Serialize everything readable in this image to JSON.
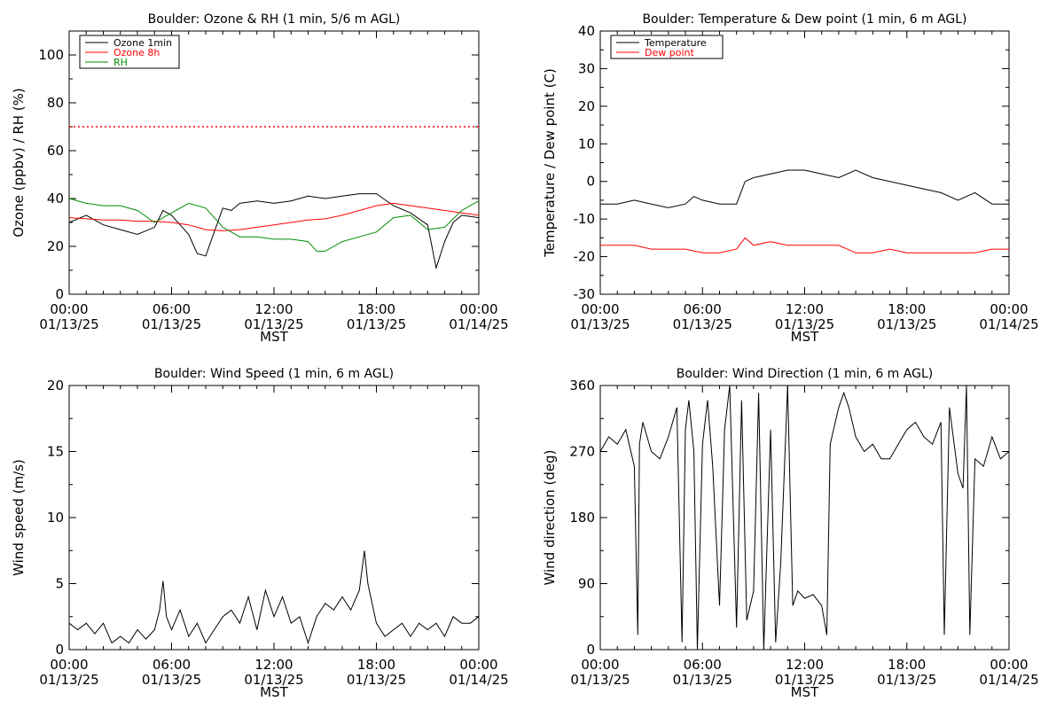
{
  "chart_data": [
    {
      "type": "line",
      "title": "Boulder: Ozone & RH (1 min, 5/6 m AGL)",
      "xlabel": "MST",
      "ylabel": "Ozone (ppbv) / RH (%)",
      "xlim": [
        0,
        24
      ],
      "ylim": [
        0,
        110
      ],
      "yticks": [
        0,
        20,
        40,
        60,
        80,
        100
      ],
      "xticks": [
        {
          "time": "00:00",
          "date": "01/13/25"
        },
        {
          "time": "06:00",
          "date": "01/13/25"
        },
        {
          "time": "12:00",
          "date": "01/13/25"
        },
        {
          "time": "18:00",
          "date": "01/13/25"
        },
        {
          "time": "00:00",
          "date": "01/14/25"
        }
      ],
      "reference_line": {
        "y": 70,
        "style": "dotted",
        "color": "#ff0000"
      },
      "legend_position": "top-left",
      "series": [
        {
          "name": "Ozone 1min",
          "color": "#000000",
          "x": [
            0,
            1,
            2,
            3,
            4,
            5,
            5.5,
            6,
            7,
            7.5,
            8,
            8.5,
            9,
            9.5,
            10,
            11,
            12,
            13,
            14,
            15,
            16,
            17,
            18,
            19,
            20,
            21,
            21.5,
            22,
            22.5,
            23,
            24
          ],
          "values": [
            30,
            33,
            29,
            27,
            25,
            28,
            35,
            33,
            25,
            17,
            16,
            26,
            36,
            35,
            38,
            39,
            38,
            39,
            41,
            40,
            41,
            42,
            42,
            37,
            34,
            29,
            11,
            22,
            30,
            33,
            32
          ]
        },
        {
          "name": "Ozone 8h",
          "color": "#ff0000",
          "x": [
            0,
            1,
            2,
            3,
            4,
            5,
            6,
            7,
            8,
            9,
            10,
            11,
            12,
            13,
            14,
            15,
            16,
            17,
            18,
            19,
            20,
            21,
            22,
            23,
            24
          ],
          "values": [
            32,
            31.5,
            31,
            31,
            30.5,
            30.5,
            30,
            29,
            27,
            26.5,
            27,
            28,
            29,
            30,
            31,
            31.5,
            33,
            35,
            37,
            38,
            37,
            36,
            35,
            34,
            33
          ]
        },
        {
          "name": "RH",
          "color": "#008c00",
          "x": [
            0,
            1,
            2,
            3,
            4,
            5,
            6,
            7,
            8,
            8.5,
            9,
            10,
            11,
            12,
            13,
            14,
            14.5,
            15,
            16,
            17,
            18,
            18.5,
            19,
            20,
            21,
            22,
            23,
            24
          ],
          "values": [
            40,
            38,
            37,
            37,
            35,
            30,
            34,
            38,
            36,
            32,
            28,
            24,
            24,
            23,
            23,
            22,
            18,
            18,
            22,
            24,
            26,
            29,
            32,
            33,
            27,
            28,
            35,
            39
          ]
        }
      ]
    },
    {
      "type": "line",
      "title": "Boulder: Temperature & Dew point (1 min, 6 m AGL)",
      "xlabel": "MST",
      "ylabel": "Temperature / Dew point (C)",
      "xlim": [
        0,
        24
      ],
      "ylim": [
        -30,
        40
      ],
      "yticks": [
        -30,
        -20,
        -10,
        0,
        10,
        20,
        30,
        40
      ],
      "xticks": [
        {
          "time": "00:00",
          "date": "01/13/25"
        },
        {
          "time": "06:00",
          "date": "01/13/25"
        },
        {
          "time": "12:00",
          "date": "01/13/25"
        },
        {
          "time": "18:00",
          "date": "01/13/25"
        },
        {
          "time": "00:00",
          "date": "01/14/25"
        }
      ],
      "legend_position": "top-left",
      "series": [
        {
          "name": "Temperature",
          "color": "#000000",
          "x": [
            0,
            1,
            2,
            3,
            4,
            5,
            5.5,
            6,
            7,
            8,
            8.5,
            9,
            10,
            11,
            12,
            13,
            14,
            15,
            16,
            17,
            18,
            19,
            20,
            21,
            22,
            23,
            24
          ],
          "values": [
            -6,
            -6,
            -5,
            -6,
            -7,
            -6,
            -4,
            -5,
            -6,
            -6,
            0,
            1,
            2,
            3,
            3,
            2,
            1,
            3,
            1,
            0,
            -1,
            -2,
            -3,
            -5,
            -3,
            -6,
            -6
          ]
        },
        {
          "name": "Dew point",
          "color": "#ff0000",
          "x": [
            0,
            1,
            2,
            3,
            4,
            5,
            6,
            7,
            8,
            8.5,
            9,
            10,
            11,
            12,
            13,
            14,
            15,
            16,
            17,
            18,
            19,
            20,
            21,
            22,
            23,
            24
          ],
          "values": [
            -17,
            -17,
            -17,
            -18,
            -18,
            -18,
            -19,
            -19,
            -18,
            -15,
            -17,
            -16,
            -17,
            -17,
            -17,
            -17,
            -19,
            -19,
            -18,
            -19,
            -19,
            -19,
            -19,
            -19,
            -18,
            -18
          ]
        }
      ]
    },
    {
      "type": "line",
      "title": "Boulder: Wind Speed (1 min, 6 m AGL)",
      "xlabel": "MST",
      "ylabel": "Wind speed (m/s)",
      "xlim": [
        0,
        24
      ],
      "ylim": [
        0,
        20
      ],
      "yticks": [
        0,
        5,
        10,
        15,
        20
      ],
      "xticks": [
        {
          "time": "00:00",
          "date": "01/13/25"
        },
        {
          "time": "06:00",
          "date": "01/13/25"
        },
        {
          "time": "12:00",
          "date": "01/13/25"
        },
        {
          "time": "18:00",
          "date": "01/13/25"
        },
        {
          "time": "00:00",
          "date": "01/14/25"
        }
      ],
      "series": [
        {
          "color": "#000000",
          "x": [
            0,
            0.5,
            1,
            1.5,
            2,
            2.5,
            3,
            3.5,
            4,
            4.5,
            5,
            5.3,
            5.5,
            5.7,
            6,
            6.5,
            7,
            7.5,
            8,
            8.5,
            9,
            9.5,
            10,
            10.5,
            11,
            11.5,
            12,
            12.5,
            13,
            13.5,
            14,
            14.5,
            15,
            15.5,
            16,
            16.5,
            17,
            17.3,
            17.5,
            18,
            18.5,
            19,
            19.5,
            20,
            20.5,
            21,
            21.5,
            22,
            22.5,
            23,
            23.5,
            24
          ],
          "values": [
            2,
            1.5,
            2,
            1.2,
            2,
            0.5,
            1,
            0.5,
            1.5,
            0.8,
            1.5,
            3,
            5.2,
            2.5,
            1.5,
            3,
            1,
            2,
            0.5,
            1.5,
            2.5,
            3,
            2,
            4,
            1.5,
            4.5,
            2.5,
            4,
            2,
            2.5,
            0.5,
            2.5,
            3.5,
            3,
            4,
            3,
            4.5,
            7.5,
            5,
            2,
            1,
            1.5,
            2,
            1,
            2,
            1.5,
            2,
            1,
            2.5,
            2,
            2,
            2.5
          ]
        }
      ]
    },
    {
      "type": "line",
      "title": "Boulder: Wind Direction (1 min, 6 m AGL)",
      "xlabel": "MST",
      "ylabel": "Wind direction (deg)",
      "xlim": [
        0,
        24
      ],
      "ylim": [
        0,
        360
      ],
      "yticks": [
        0,
        90,
        180,
        270,
        360
      ],
      "xticks": [
        {
          "time": "00:00",
          "date": "01/13/25"
        },
        {
          "time": "06:00",
          "date": "01/13/25"
        },
        {
          "time": "12:00",
          "date": "01/13/25"
        },
        {
          "time": "18:00",
          "date": "01/13/25"
        },
        {
          "time": "00:00",
          "date": "01/14/25"
        }
      ],
      "series": [
        {
          "color": "#000000",
          "x": [
            0,
            0.5,
            1,
            1.5,
            2,
            2.2,
            2.3,
            2.5,
            3,
            3.5,
            4,
            4.5,
            4.8,
            5,
            5.2,
            5.5,
            5.7,
            6,
            6.3,
            6.6,
            7,
            7.3,
            7.6,
            8,
            8.3,
            8.6,
            9,
            9.3,
            9.6,
            10,
            10.3,
            10.6,
            11,
            11.3,
            11.6,
            12,
            12.5,
            13,
            13.3,
            13.5,
            14,
            14.3,
            14.6,
            15,
            15.5,
            16,
            16.5,
            17,
            17.5,
            18,
            18.5,
            19,
            19.5,
            20,
            20.2,
            20.5,
            21,
            21.3,
            21.5,
            21.7,
            22,
            22.5,
            23,
            23.5,
            24
          ],
          "values": [
            270,
            290,
            280,
            300,
            250,
            20,
            280,
            310,
            270,
            260,
            290,
            330,
            10,
            300,
            340,
            270,
            0,
            280,
            340,
            250,
            60,
            300,
            360,
            30,
            340,
            40,
            80,
            350,
            0,
            300,
            10,
            120,
            360,
            60,
            80,
            70,
            75,
            60,
            20,
            280,
            330,
            350,
            330,
            290,
            270,
            280,
            260,
            260,
            280,
            300,
            310,
            290,
            280,
            310,
            20,
            330,
            240,
            220,
            360,
            20,
            260,
            250,
            290,
            260,
            270
          ]
        }
      ]
    }
  ]
}
